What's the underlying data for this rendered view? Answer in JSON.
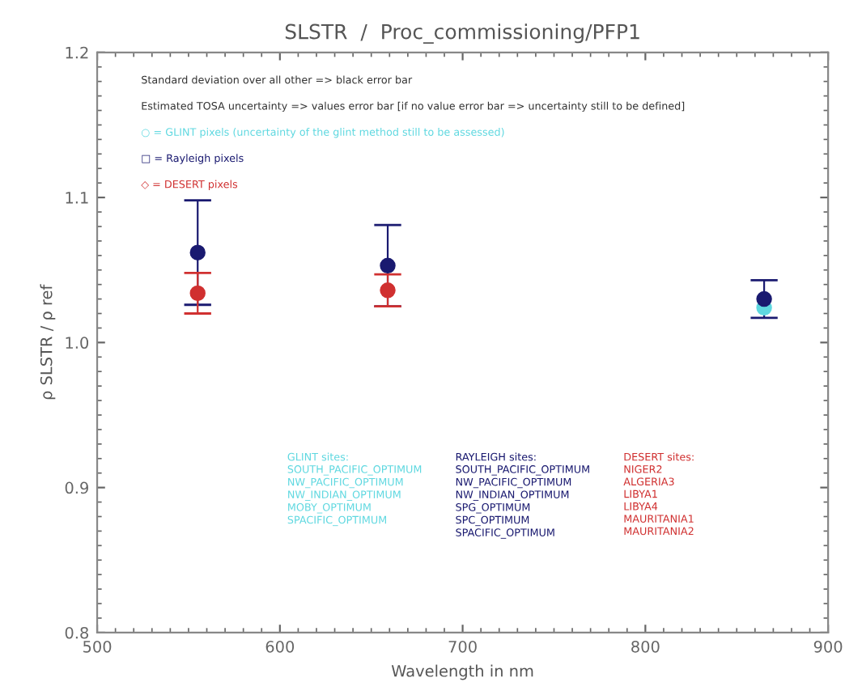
{
  "chart_data": {
    "type": "scatter",
    "title": "SLSTR  /  Proc_commissioning/PFP1",
    "xlabel": "Wavelength in nm",
    "ylabel": "ρ SLSTR / ρ ref",
    "x": [
      555,
      659,
      865
    ],
    "series": [
      {
        "name": "○ = GLINT pixels (uncertainty of the glint method still to be assessed)",
        "color": "#5fd8e0",
        "values": [
          null,
          null,
          1.024
        ],
        "errors": [
          null,
          null,
          null
        ]
      },
      {
        "name": "□ = Rayleigh pixels",
        "color": "#1a1a70",
        "values": [
          1.062,
          1.053,
          1.03
        ],
        "errors": [
          0.036,
          0.028,
          0.013
        ]
      },
      {
        "name": "◇ = DESERT pixels",
        "color": "#d03030",
        "values": [
          1.034,
          1.036,
          null
        ],
        "errors": [
          0.014,
          0.011,
          null
        ]
      }
    ],
    "annotations": [
      "Standard deviation over all other => black error bar",
      "Estimated TOSA uncertainty => values error bar [if no value error bar => uncertainty still to be defined]",
      "GLINT sites:\nSOUTH_PACIFIC_OPTIMUM\nNW_PACIFIC_OPTIMUM\nNW_INDIAN_OPTIMUM\nMOBY_OPTIMUM\nSPACIFIC_OPTIMUM",
      "RAYLEIGH sites:\nSOUTH_PACIFIC_OPTIMUM\nNW_PACIFIC_OPTIMUM\nNW_INDIAN_OPTIMUM\nSPG_OPTIMUM\nSPC_OPTIMUM\nSPACIFIC_OPTIMUM",
      "DESERT sites:\nNIGER2\nALGERIA3\nLIBYA1\nLIBYA4\nMAURITANIA1\nMAURITANIA2"
    ],
    "xlim": [
      500,
      900
    ],
    "xticks": [
      500,
      600,
      700,
      800,
      900
    ],
    "ylim": [
      0.8,
      1.2
    ],
    "yticks": [
      0.8,
      0.9,
      {
        "value": 1,
        "label": "1.0"
      },
      1.1,
      1.2
    ],
    "marker": "circle",
    "grid": false,
    "legend": false
  }
}
